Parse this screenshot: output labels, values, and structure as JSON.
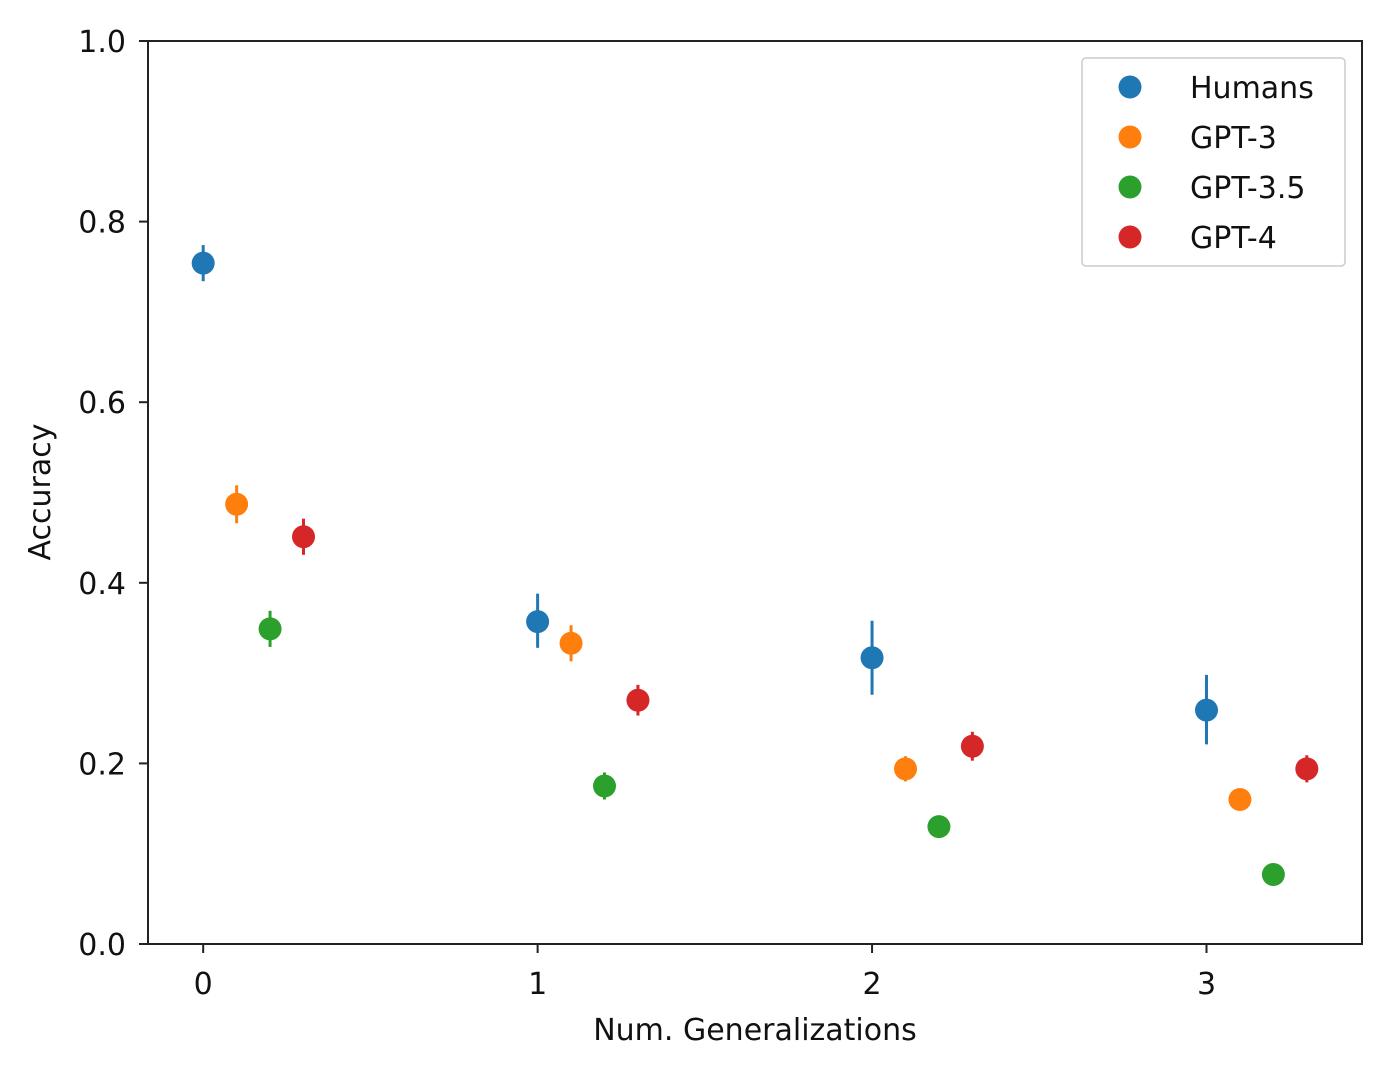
{
  "chart_data": {
    "type": "scatter",
    "title": "",
    "xlabel": "Num. Generalizations",
    "ylabel": "Accuracy",
    "xlim": [
      -0.165,
      3.465
    ],
    "ylim": [
      0.0,
      1.0
    ],
    "x_ticks": [
      0,
      1,
      2,
      3
    ],
    "x_tick_labels": [
      "0",
      "1",
      "2",
      "3"
    ],
    "y_ticks": [
      0.0,
      0.2,
      0.4,
      0.6,
      0.8,
      1.0
    ],
    "y_tick_labels": [
      "0.0",
      "0.2",
      "0.4",
      "0.6",
      "0.8",
      "1.0"
    ],
    "grid": false,
    "legend_position": "top-right",
    "series": [
      {
        "name": "Humans",
        "color": "#1f77b4",
        "x": [
          0.0,
          1.0,
          2.0,
          3.0
        ],
        "y": [
          0.754,
          0.357,
          0.317,
          0.259
        ],
        "err_low": [
          0.734,
          0.328,
          0.276,
          0.221
        ],
        "err_high": [
          0.774,
          0.388,
          0.358,
          0.298
        ]
      },
      {
        "name": "GPT-3",
        "color": "#ff7f0e",
        "x": [
          0.1,
          1.1,
          2.1,
          3.1
        ],
        "y": [
          0.487,
          0.333,
          0.194,
          0.16
        ],
        "err_low": [
          0.466,
          0.313,
          0.18,
          0.148
        ],
        "err_high": [
          0.508,
          0.353,
          0.208,
          0.172
        ]
      },
      {
        "name": "GPT-3.5",
        "color": "#2ca02c",
        "x": [
          0.2,
          1.2,
          2.2,
          3.2
        ],
        "y": [
          0.349,
          0.175,
          0.13,
          0.077
        ],
        "err_low": [
          0.329,
          0.16,
          0.12,
          0.07
        ],
        "err_high": [
          0.369,
          0.19,
          0.14,
          0.084
        ]
      },
      {
        "name": "GPT-4",
        "color": "#d62728",
        "x": [
          0.3,
          1.3,
          2.3,
          3.3
        ],
        "y": [
          0.451,
          0.27,
          0.219,
          0.194
        ],
        "err_low": [
          0.431,
          0.253,
          0.203,
          0.179
        ],
        "err_high": [
          0.471,
          0.287,
          0.235,
          0.209
        ]
      }
    ]
  }
}
